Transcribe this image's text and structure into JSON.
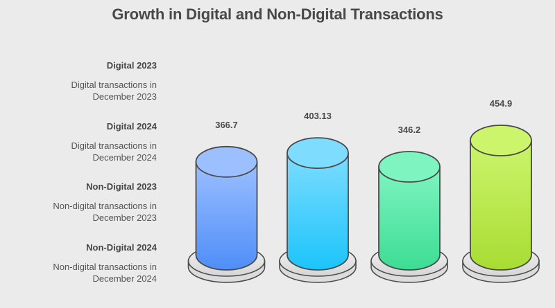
{
  "chart_data": {
    "type": "bar",
    "style": "3d-cylinder",
    "title": "Growth in Digital and Non-Digital Transactions",
    "xlabel": "",
    "ylabel": "",
    "categories": [
      "Digital 2023",
      "Digital 2024",
      "Non-Digital 2023",
      "Non-Digital 2024"
    ],
    "values": [
      366.7,
      403.13,
      346.2,
      454.9
    ],
    "value_labels": [
      "366.7",
      "403.13",
      "346.2",
      "454.9"
    ],
    "grid": false,
    "legend_position": "left",
    "legend": [
      {
        "title": "Digital 2023",
        "description": "Digital transactions in December 2023"
      },
      {
        "title": "Digital 2024",
        "description": "Digital transactions in December 2024"
      },
      {
        "title": "Non-Digital 2023",
        "description": "Non-digital transactions in December 2023"
      },
      {
        "title": "Non-Digital 2024",
        "description": "Non-digital transactions in December 2024"
      }
    ],
    "colors": [
      {
        "top": "#9bbfff",
        "bottom": "#4f8ef8"
      },
      {
        "top": "#7ddcff",
        "bottom": "#1cc4fb"
      },
      {
        "top": "#7ef5c0",
        "bottom": "#3ddc94"
      },
      {
        "top": "#ccf56c",
        "bottom": "#a8dc33"
      }
    ]
  }
}
